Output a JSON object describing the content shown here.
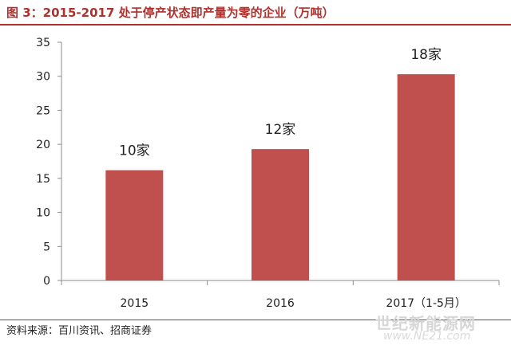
{
  "header": {
    "title": "图 3：2015-2017 处于停产状态即产量为零的企业（万吨）"
  },
  "footer": {
    "source": "资料来源：百川资讯、招商证券",
    "watermark": "世纪新能源网",
    "watermark_url": "www.NE21.com"
  },
  "chart_data": {
    "type": "bar",
    "title": "2015-2017 处于停产状态即产量为零的企业（万吨）",
    "categories": [
      "2015",
      "2016",
      "2017（1-5月）"
    ],
    "values": [
      16.2,
      19.3,
      30.3
    ],
    "data_labels": [
      "10家",
      "12家",
      "18家"
    ],
    "xlabel": "",
    "ylabel": "",
    "ylim": [
      0,
      35
    ],
    "yticks": [
      "0",
      "5",
      "10",
      "15",
      "20",
      "25",
      "30",
      "35"
    ],
    "grid": false,
    "legend": "none",
    "bar_color": "#c0504d"
  }
}
